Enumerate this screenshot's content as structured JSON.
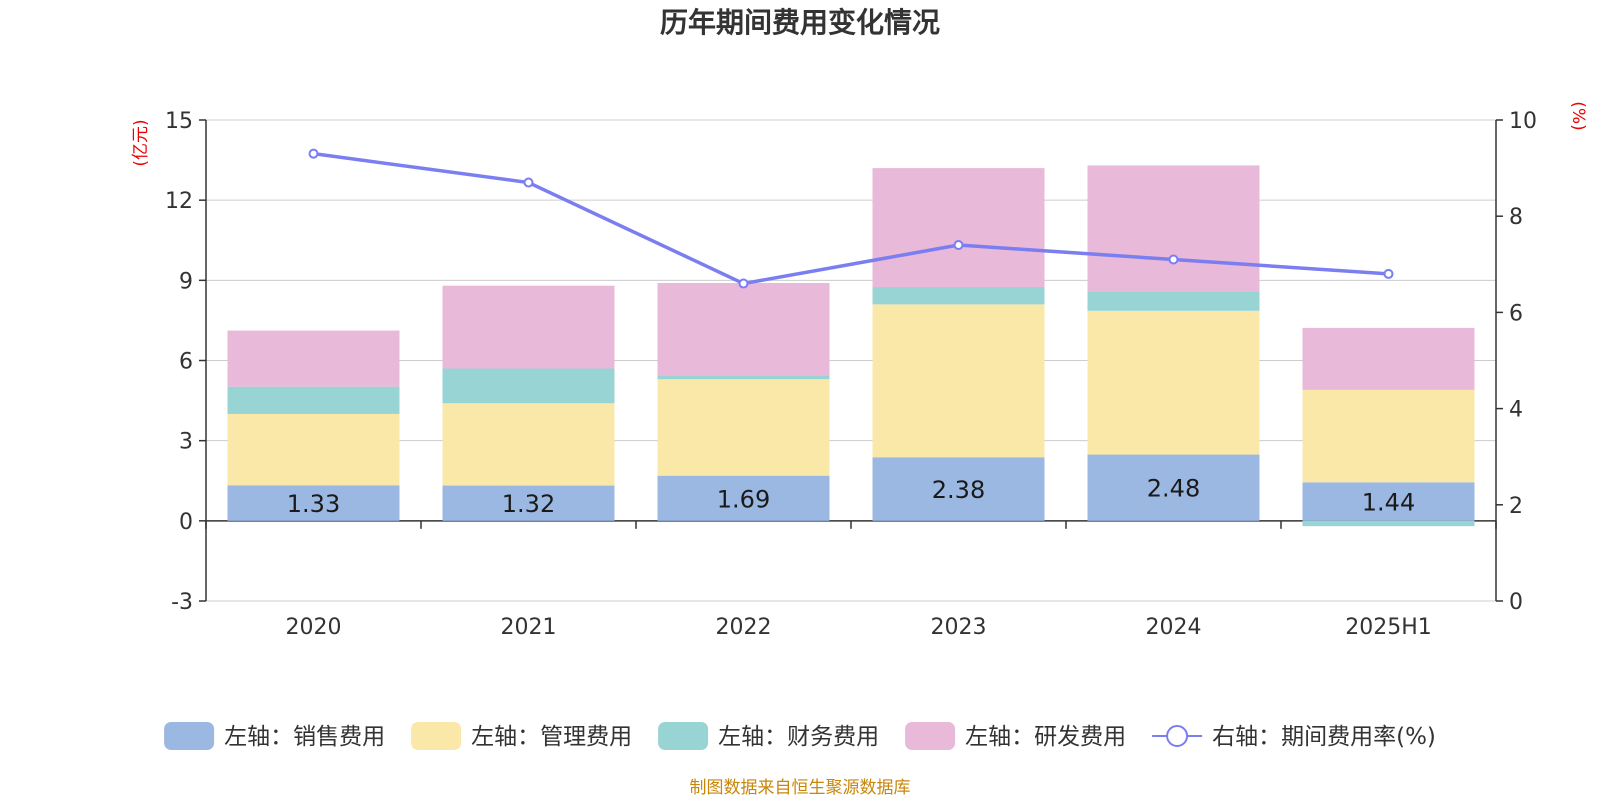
{
  "chart_data": {
    "type": "bar",
    "stacked": true,
    "title": "历年期间费用变化情况",
    "categories": [
      "2020",
      "2021",
      "2022",
      "2023",
      "2024",
      "2025H1"
    ],
    "left_axis": {
      "unit": "(亿元)",
      "ylim": [
        -3,
        15
      ],
      "ticks": [
        -3,
        0,
        3,
        6,
        9,
        12,
        15
      ]
    },
    "right_axis": {
      "unit": "(%)",
      "ylim": [
        0,
        10
      ],
      "ticks": [
        0,
        2,
        4,
        6,
        8,
        10
      ]
    },
    "series": [
      {
        "name": "左轴：销售费用",
        "type": "bar",
        "axis": "left",
        "color": "#9bb8e3",
        "values": [
          1.33,
          1.32,
          1.69,
          2.38,
          2.48,
          1.44
        ],
        "labels": [
          "1.33",
          "1.32",
          "1.69",
          "2.38",
          "2.48",
          "1.44"
        ]
      },
      {
        "name": "左轴：管理费用",
        "type": "bar",
        "axis": "left",
        "color": "#f9e8a8",
        "values": [
          2.67,
          3.08,
          3.61,
          5.72,
          5.38,
          3.46
        ]
      },
      {
        "name": "左轴：财务费用",
        "type": "bar",
        "axis": "left",
        "color": "#98d4d4",
        "values": [
          1.02,
          1.3,
          0.15,
          0.65,
          0.72,
          -0.2
        ]
      },
      {
        "name": "左轴：研发费用",
        "type": "bar",
        "axis": "left",
        "color": "#e8b9d9",
        "values": [
          2.1,
          3.1,
          3.45,
          4.45,
          4.72,
          2.32
        ]
      },
      {
        "name": "右轴：期间费用率(%)",
        "type": "line",
        "axis": "right",
        "color": "#7b7ef0",
        "values": [
          9.3,
          8.7,
          6.6,
          7.4,
          7.1,
          6.8
        ]
      }
    ],
    "grid": true,
    "legend": "bottom"
  },
  "source_note": "制图数据来自恒生聚源数据库"
}
